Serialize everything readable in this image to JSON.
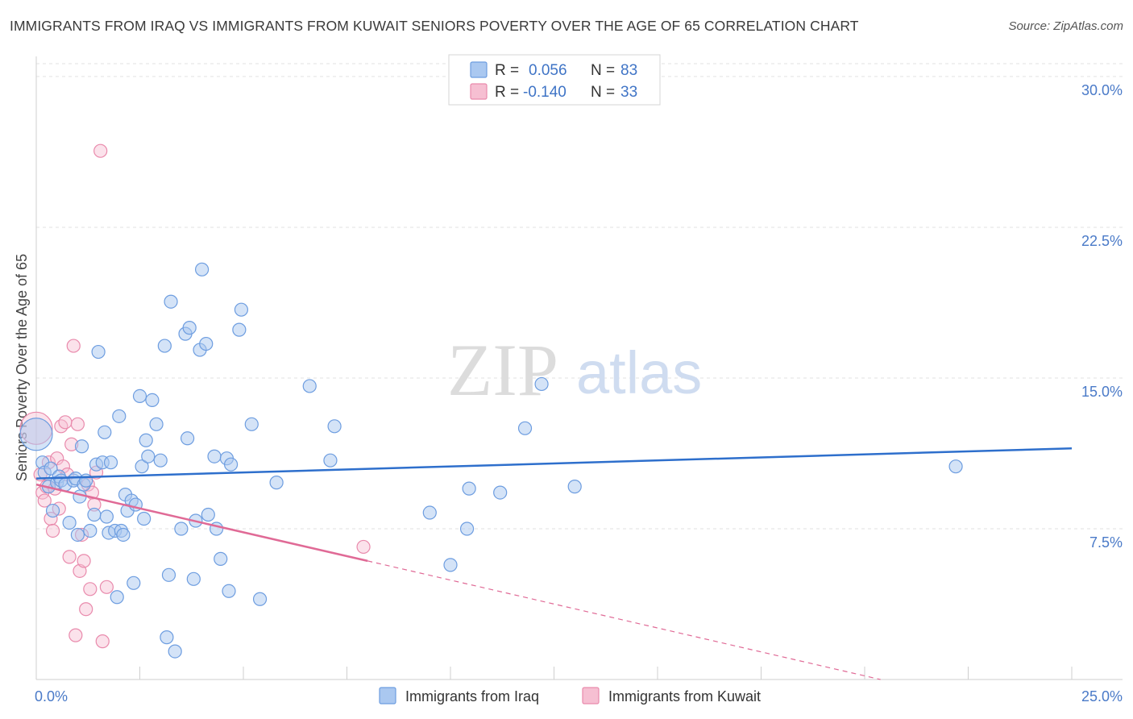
{
  "header": {
    "title": "IMMIGRANTS FROM IRAQ VS IMMIGRANTS FROM KUWAIT SENIORS POVERTY OVER THE AGE OF 65 CORRELATION CHART",
    "source": "Source: ZipAtlas.com"
  },
  "watermark": {
    "part1": "ZIP",
    "part2": "atlas"
  },
  "legend": {
    "rows": [
      {
        "r_label": "R =",
        "r_value": "0.056",
        "n_label": "N =",
        "n_value": "83"
      },
      {
        "r_label": "R =",
        "r_value": "-0.140",
        "n_label": "N =",
        "n_value": "33"
      }
    ]
  },
  "colors": {
    "iraq_fill": "#aac8f0",
    "iraq_stroke": "#6d9de0",
    "iraq_line": "#2e6fcc",
    "kuwait_fill": "#f6bfd2",
    "kuwait_stroke": "#e98aac",
    "kuwait_line": "#e06a96",
    "grid": "#e2e2e2",
    "axis_label": "#4a7ac8"
  },
  "chart_data": {
    "type": "scatter",
    "title": "IMMIGRANTS FROM IRAQ VS IMMIGRANTS FROM KUWAIT SENIORS POVERTY OVER THE AGE OF 65 CORRELATION CHART",
    "xlabel": "",
    "ylabel": "Seniors Poverty Over the Age of 65",
    "xlim": [
      0,
      25
    ],
    "ylim": [
      0,
      31
    ],
    "x_tick_labels": [
      "0.0%",
      "25.0%"
    ],
    "y_ticks": [
      7.5,
      15.0,
      22.5,
      30.0
    ],
    "y_tick_labels": [
      "7.5%",
      "15.0%",
      "22.5%",
      "30.0%"
    ],
    "grid": true,
    "legend_position": "top-center",
    "series": [
      {
        "name": "Immigrants from Iraq",
        "r": 0.056,
        "n": 83,
        "trend": {
          "x": [
            0,
            25
          ],
          "y": [
            10.0,
            11.5
          ]
        },
        "points": [
          [
            0.0,
            12.2
          ],
          [
            0.15,
            10.8
          ],
          [
            0.2,
            10.3
          ],
          [
            0.3,
            9.6
          ],
          [
            0.35,
            10.5
          ],
          [
            0.4,
            8.4
          ],
          [
            0.5,
            9.8
          ],
          [
            0.55,
            10.1
          ],
          [
            0.6,
            9.9
          ],
          [
            0.7,
            9.7
          ],
          [
            0.8,
            7.8
          ],
          [
            0.9,
            9.9
          ],
          [
            0.95,
            10.0
          ],
          [
            1.0,
            7.2
          ],
          [
            1.05,
            9.1
          ],
          [
            1.1,
            11.6
          ],
          [
            1.15,
            9.7
          ],
          [
            1.2,
            9.9
          ],
          [
            1.3,
            7.4
          ],
          [
            1.4,
            8.2
          ],
          [
            1.45,
            10.7
          ],
          [
            1.5,
            16.3
          ],
          [
            1.6,
            10.8
          ],
          [
            1.65,
            12.3
          ],
          [
            1.7,
            8.1
          ],
          [
            1.75,
            7.3
          ],
          [
            1.8,
            10.8
          ],
          [
            1.9,
            7.4
          ],
          [
            1.95,
            4.1
          ],
          [
            2.0,
            13.1
          ],
          [
            2.05,
            7.4
          ],
          [
            2.1,
            7.2
          ],
          [
            2.15,
            9.2
          ],
          [
            2.2,
            8.4
          ],
          [
            2.3,
            8.9
          ],
          [
            2.35,
            4.8
          ],
          [
            2.4,
            8.7
          ],
          [
            2.5,
            14.1
          ],
          [
            2.55,
            10.6
          ],
          [
            2.6,
            8.0
          ],
          [
            2.65,
            11.9
          ],
          [
            2.7,
            11.1
          ],
          [
            2.8,
            13.9
          ],
          [
            2.9,
            12.7
          ],
          [
            3.0,
            10.9
          ],
          [
            3.1,
            16.6
          ],
          [
            3.15,
            2.1
          ],
          [
            3.2,
            5.2
          ],
          [
            3.25,
            18.8
          ],
          [
            3.35,
            1.4
          ],
          [
            3.5,
            7.5
          ],
          [
            3.6,
            17.2
          ],
          [
            3.65,
            12.0
          ],
          [
            3.7,
            17.5
          ],
          [
            3.8,
            5.0
          ],
          [
            3.85,
            7.9
          ],
          [
            3.95,
            16.4
          ],
          [
            4.0,
            20.4
          ],
          [
            4.1,
            16.7
          ],
          [
            4.15,
            8.2
          ],
          [
            4.3,
            11.1
          ],
          [
            4.35,
            7.5
          ],
          [
            4.45,
            6.0
          ],
          [
            4.6,
            11.0
          ],
          [
            4.65,
            4.4
          ],
          [
            4.7,
            10.7
          ],
          [
            4.9,
            17.4
          ],
          [
            4.95,
            18.4
          ],
          [
            5.2,
            12.7
          ],
          [
            5.4,
            4.0
          ],
          [
            5.8,
            9.8
          ],
          [
            6.6,
            14.6
          ],
          [
            7.1,
            10.9
          ],
          [
            7.2,
            12.6
          ],
          [
            9.5,
            8.3
          ],
          [
            10.0,
            5.7
          ],
          [
            10.4,
            7.5
          ],
          [
            10.45,
            9.5
          ],
          [
            11.2,
            9.3
          ],
          [
            11.8,
            12.5
          ],
          [
            12.2,
            14.7
          ],
          [
            13.0,
            9.6
          ],
          [
            22.2,
            10.6
          ]
        ]
      },
      {
        "name": "Immigrants from Kuwait",
        "r": -0.14,
        "n": 33,
        "trend": {
          "x": [
            0,
            8.0
          ],
          "y": [
            9.7,
            5.9
          ]
        },
        "trend_dashed": {
          "x": [
            8.0,
            25
          ],
          "y": [
            5.9,
            -2.2
          ]
        },
        "points": [
          [
            0.0,
            12.5
          ],
          [
            0.1,
            10.2
          ],
          [
            0.15,
            9.3
          ],
          [
            0.2,
            8.9
          ],
          [
            0.25,
            9.6
          ],
          [
            0.3,
            10.8
          ],
          [
            0.35,
            8.0
          ],
          [
            0.4,
            7.4
          ],
          [
            0.45,
            9.5
          ],
          [
            0.5,
            11.0
          ],
          [
            0.55,
            8.5
          ],
          [
            0.6,
            12.6
          ],
          [
            0.65,
            10.6
          ],
          [
            0.7,
            12.8
          ],
          [
            0.75,
            10.2
          ],
          [
            0.8,
            6.1
          ],
          [
            0.85,
            11.7
          ],
          [
            0.9,
            16.6
          ],
          [
            0.95,
            2.2
          ],
          [
            1.0,
            12.7
          ],
          [
            1.05,
            5.4
          ],
          [
            1.1,
            7.2
          ],
          [
            1.15,
            5.9
          ],
          [
            1.2,
            3.5
          ],
          [
            1.25,
            9.7
          ],
          [
            1.3,
            4.5
          ],
          [
            1.35,
            9.3
          ],
          [
            1.4,
            8.7
          ],
          [
            1.45,
            10.3
          ],
          [
            1.55,
            26.3
          ],
          [
            1.6,
            1.9
          ],
          [
            1.7,
            4.6
          ],
          [
            7.9,
            6.6
          ]
        ]
      }
    ]
  },
  "bottom_legend": {
    "items": [
      {
        "label": "Immigrants from Iraq"
      },
      {
        "label": "Immigrants from Kuwait"
      }
    ]
  }
}
